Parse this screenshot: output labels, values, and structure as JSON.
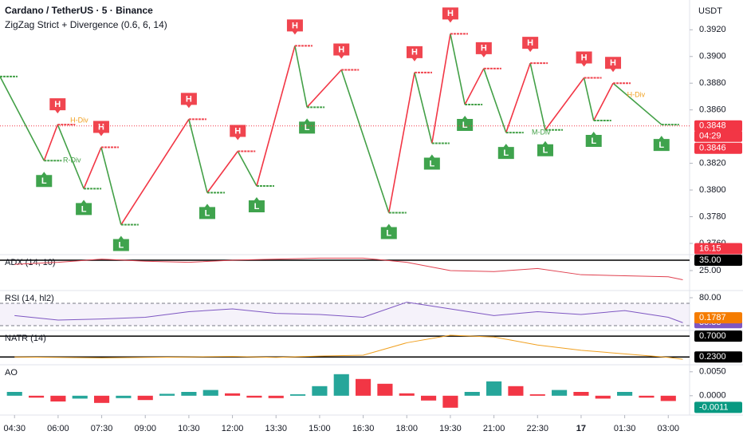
{
  "header": {
    "symbol": "Cardano / TetherUS · 5 · Binance",
    "indicator": "ZigZag Strict + Divergence (0.6, 6, 14)",
    "currency": "USDT"
  },
  "chart_data": [
    {
      "type": "zigzag",
      "xlim": [
        -30,
        1394
      ],
      "ylim": [
        0.37522,
        0.39423
      ],
      "yticks": [
        {
          "value": 0.392,
          "label": "0.3920"
        },
        {
          "value": 0.39,
          "label": "0.3900"
        },
        {
          "value": 0.388,
          "label": "0.3880"
        },
        {
          "value": 0.386,
          "label": "0.3860"
        },
        {
          "value": 0.382,
          "label": "0.3820"
        },
        {
          "value": 0.38,
          "label": "0.3800"
        },
        {
          "value": 0.378,
          "label": "0.3780"
        },
        {
          "value": 0.376,
          "label": "0.3760"
        }
      ],
      "x": [
        -30,
        61,
        89,
        143,
        179,
        220,
        360,
        398,
        461,
        500,
        579,
        604,
        675,
        773,
        826,
        862,
        900,
        930,
        969,
        1015,
        1065,
        1096,
        1176,
        1196,
        1236,
        1336
      ],
      "values": [
        0.3885,
        0.3822,
        0.3849,
        0.3801,
        0.3832,
        0.3774,
        0.3853,
        0.3798,
        0.3829,
        0.3803,
        0.3908,
        0.3862,
        0.389,
        0.3783,
        0.3888,
        0.3835,
        0.3917,
        0.3864,
        0.3891,
        0.3843,
        0.3895,
        0.3845,
        0.3884,
        0.3852,
        0.388,
        0.3849
      ],
      "pivot_labels": [
        null,
        "L",
        "H",
        "L",
        "H",
        "L",
        "H",
        "L",
        "H",
        "L",
        "H",
        "L",
        "H",
        "L",
        "H",
        "L",
        "H",
        "L",
        "H",
        "L",
        "H",
        "L",
        "H",
        "L",
        "H",
        "L"
      ],
      "colors": {
        "up": "#f23645",
        "down": "#43a047",
        "high": "#f0454f",
        "low": "#3fa34d"
      },
      "annotations": [
        {
          "text": "H-Div",
          "x": 115,
          "y": 0.3852,
          "color": "#f0a020"
        },
        {
          "text": "R-Div",
          "x": 100,
          "y": 0.3822,
          "color": "#43a047"
        },
        {
          "text": "M-Div",
          "x": 1068,
          "y": 0.3843,
          "color": "#43a047"
        },
        {
          "text": "H-Div",
          "x": 1265,
          "y": 0.3871,
          "color": "#f0a020"
        }
      ],
      "price_labels": [
        0.3848,
        0.3846
      ],
      "countdown": "04:29",
      "label_color": "#f23645"
    },
    {
      "type": "line",
      "name": "ADX (14, 10)",
      "color": "#e0404f",
      "xlim": [
        -30,
        1394
      ],
      "ylim": [
        7.3,
        39.6
      ],
      "levels": [
        {
          "value": 35,
          "label": "35.00"
        }
      ],
      "yticks": [
        {
          "value": 25,
          "label": "25.00"
        }
      ],
      "x": [
        0,
        90,
        180,
        270,
        360,
        450,
        540,
        630,
        720,
        810,
        900,
        990,
        1080,
        1170,
        1260,
        1350,
        1380
      ],
      "values": [
        31,
        33,
        36,
        34,
        33,
        35,
        36,
        37,
        37,
        33,
        25,
        24,
        27,
        21,
        20,
        19,
        16.15
      ],
      "label_color": "#f23645"
    },
    {
      "type": "line",
      "name": "RSI (14, hl2)",
      "color": "#7e57c2",
      "xlim": [
        -30,
        1394
      ],
      "ylim": [
        24.3,
        91.4
      ],
      "band": [
        30,
        70
      ],
      "yticks": [
        {
          "value": 80,
          "label": "80.00"
        }
      ],
      "x": [
        0,
        90,
        180,
        270,
        360,
        450,
        540,
        630,
        720,
        810,
        900,
        990,
        1080,
        1170,
        1260,
        1350,
        1380
      ],
      "values": [
        48,
        40,
        42,
        45,
        55,
        60,
        52,
        50,
        45,
        72,
        60,
        48,
        55,
        50,
        57,
        45,
        35.33
      ],
      "label_color": "#7e57c2"
    },
    {
      "type": "line",
      "name": "NATR (14)",
      "color": "#f0a020",
      "xlim": [
        -30,
        1394
      ],
      "ylim": [
        0.09,
        0.81
      ],
      "levels": [
        {
          "value": 0.7,
          "label": "0.7000"
        },
        {
          "value": 0.23,
          "label": "0.2300"
        }
      ],
      "x": [
        0,
        90,
        180,
        270,
        360,
        450,
        540,
        630,
        720,
        810,
        900,
        990,
        1080,
        1170,
        1260,
        1350,
        1380
      ],
      "values": [
        0.23,
        0.22,
        0.21,
        0.22,
        0.23,
        0.24,
        0.22,
        0.25,
        0.27,
        0.55,
        0.72,
        0.68,
        0.5,
        0.38,
        0.3,
        0.22,
        0.1787
      ],
      "label_color": "#f57c00"
    },
    {
      "type": "histogram",
      "name": "AO",
      "xlim": [
        -30,
        1394
      ],
      "ylim": [
        -0.0037,
        0.0063
      ],
      "colors": {
        "up": "#26a69a",
        "down": "#f23645"
      },
      "yticks": [
        {
          "value": 0.005,
          "label": "0.0050"
        },
        {
          "value": 0,
          "label": "0.0000"
        }
      ],
      "x": [
        0,
        45,
        90,
        135,
        180,
        225,
        270,
        315,
        360,
        405,
        450,
        495,
        540,
        585,
        630,
        675,
        720,
        765,
        810,
        855,
        900,
        945,
        990,
        1035,
        1080,
        1125,
        1170,
        1215,
        1260,
        1305,
        1350
      ],
      "values": [
        0.0008,
        -0.0004,
        -0.0012,
        -0.0006,
        -0.0015,
        -0.0005,
        -0.0009,
        0.0004,
        0.0008,
        0.0012,
        0.0005,
        -0.0004,
        -0.0005,
        0.0003,
        0.002,
        0.0045,
        0.0035,
        0.0025,
        0.0005,
        -0.001,
        -0.0025,
        0.0008,
        0.003,
        0.002,
        0.0003,
        0.0012,
        0.0008,
        -0.0006,
        0.0008,
        -0.0004,
        -0.0011
      ],
      "label_color": "#089981",
      "xticks": [
        {
          "value": 0,
          "label": "04:30"
        },
        {
          "value": 90,
          "label": "06:00"
        },
        {
          "value": 180,
          "label": "07:30"
        },
        {
          "value": 270,
          "label": "09:00"
        },
        {
          "value": 360,
          "label": "10:30"
        },
        {
          "value": 450,
          "label": "12:00"
        },
        {
          "value": 540,
          "label": "13:30"
        },
        {
          "value": 630,
          "label": "15:00"
        },
        {
          "value": 720,
          "label": "16:30"
        },
        {
          "value": 810,
          "label": "18:00"
        },
        {
          "value": 900,
          "label": "19:30"
        },
        {
          "value": 990,
          "label": "21:00"
        },
        {
          "value": 1080,
          "label": "22:30"
        },
        {
          "value": 1170,
          "label": "17"
        },
        {
          "value": 1260,
          "label": "01:30"
        },
        {
          "value": 1350,
          "label": "03:00"
        }
      ]
    }
  ]
}
